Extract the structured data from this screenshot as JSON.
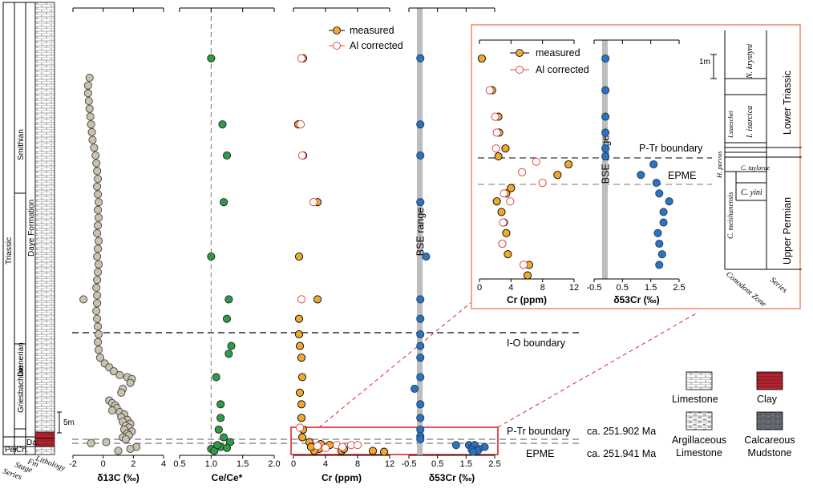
{
  "stratigraphy": {
    "column_labels": [
      "Series",
      "Stage",
      "Fm",
      "Lithology"
    ],
    "series": [
      {
        "label": "Per."
      },
      {
        "label": "Triassic"
      }
    ],
    "stages": [
      {
        "label": "Ch."
      },
      {
        "label": "Griesbachian"
      },
      {
        "label": "Dienerian"
      },
      {
        "label": "Smithian"
      }
    ],
    "formations": [
      {
        "label": "Da."
      },
      {
        "label": "Daye Formation"
      }
    ],
    "scale_label": "5m"
  },
  "boundaries": {
    "io": "I-O boundary",
    "ptr": "P-Tr boundary",
    "epme": "EPME",
    "ptr_age": "ca. 251.902 Ma",
    "epme_age": "ca. 251.941 Ma"
  },
  "legend_lithology": [
    {
      "label": "Limestone",
      "color": "#ffffff"
    },
    {
      "label": "Clay",
      "color": "#b32530"
    },
    {
      "label": "Argillaceous Limestone",
      "color": "#ffffff"
    },
    {
      "label": "Calcareous Mudstone",
      "color": "#555b63"
    }
  ],
  "colors": {
    "d13c": "#c9c3ad",
    "cece": "#2e9c47",
    "cr_measured": "#f0a92f",
    "cr_corrected": "#e04a4a",
    "d53cr": "#2f72b8",
    "bse": "#bdbdbd",
    "highlight": "#e0262e",
    "inset_border": "#f3a68a",
    "clay": "#b32530"
  },
  "chart_data": [
    {
      "type": "scatter",
      "xlabel": "δ13C (‰)",
      "ylim": [
        0,
        100
      ],
      "y_unit": "height (m)",
      "xlim": [
        -2,
        4
      ],
      "xticks": [
        -2,
        0,
        2,
        4
      ],
      "series": [
        {
          "values": [
            [
              -0.9,
              93
            ],
            [
              -1,
              91
            ],
            [
              -1,
              89
            ],
            [
              -0.95,
              87
            ],
            [
              -0.9,
              85
            ],
            [
              -0.85,
              83
            ],
            [
              -0.8,
              81
            ],
            [
              -0.75,
              79
            ],
            [
              -0.7,
              77
            ],
            [
              -0.6,
              75
            ],
            [
              -0.5,
              73
            ],
            [
              -0.45,
              71
            ],
            [
              -0.4,
              69
            ],
            [
              -0.35,
              67
            ],
            [
              -0.4,
              65
            ],
            [
              -0.35,
              63
            ],
            [
              -0.3,
              61
            ],
            [
              -0.35,
              59
            ],
            [
              -0.3,
              57
            ],
            [
              -0.35,
              55
            ],
            [
              -0.4,
              53
            ],
            [
              -0.3,
              51
            ],
            [
              -0.35,
              49
            ],
            [
              -0.4,
              47
            ],
            [
              -0.3,
              45
            ],
            [
              -0.35,
              43
            ],
            [
              -0.4,
              41
            ],
            [
              -0.45,
              39
            ],
            [
              -0.4,
              37
            ],
            [
              -1.3,
              36
            ],
            [
              -0.4,
              35
            ],
            [
              -0.45,
              33
            ],
            [
              -0.4,
              31
            ],
            [
              -0.35,
              29
            ],
            [
              -0.3,
              27
            ],
            [
              -0.35,
              25
            ],
            [
              -0.3,
              23
            ],
            [
              -0.2,
              21
            ],
            [
              0.1,
              19.5
            ],
            [
              0.4,
              18.5
            ],
            [
              0.7,
              17.5
            ],
            [
              1.1,
              16.5
            ],
            [
              1.6,
              16
            ],
            [
              1.9,
              15.5
            ],
            [
              1.8,
              14.5
            ],
            [
              1.3,
              13
            ],
            [
              1.2,
              12
            ],
            [
              0.4,
              10
            ],
            [
              0.6,
              9.3
            ],
            [
              0.8,
              8.7
            ],
            [
              0.9,
              8
            ],
            [
              0.6,
              7.4
            ],
            [
              1.1,
              7
            ],
            [
              1.4,
              6.4
            ],
            [
              1.2,
              5.7
            ],
            [
              1.6,
              5
            ],
            [
              1.3,
              4.5
            ],
            [
              1.8,
              4
            ],
            [
              1.5,
              3.5
            ],
            [
              1.7,
              3
            ],
            [
              1.4,
              2.5
            ],
            [
              1.9,
              2
            ],
            [
              1.6,
              1.5
            ],
            [
              1.7,
              1
            ],
            [
              1.3,
              0.5
            ],
            [
              1.5,
              0
            ],
            [
              0.2,
              -0.3
            ],
            [
              2.2,
              -0.8
            ],
            [
              1.8,
              -1
            ],
            [
              1,
              -1.2
            ],
            [
              -0.8,
              -0.4
            ]
          ]
        }
      ]
    },
    {
      "type": "scatter",
      "xlabel": "Ce/Ce*",
      "ylim": [
        0,
        100
      ],
      "y_unit": "height (m)",
      "xlim": [
        0.5,
        2.0
      ],
      "xticks": [
        0.5,
        1.0,
        1.5,
        2.0
      ],
      "series": [
        {
          "values": [
            [
              1.0,
              98
            ],
            [
              1.18,
              81
            ],
            [
              1.25,
              73
            ],
            [
              1.2,
              61
            ],
            [
              1.0,
              47
            ],
            [
              1.28,
              36
            ],
            [
              1.25,
              31
            ],
            [
              1.32,
              24
            ],
            [
              1.28,
              22
            ],
            [
              1.08,
              16
            ],
            [
              1.15,
              9
            ],
            [
              1.15,
              5.5
            ],
            [
              1.12,
              2.5
            ],
            [
              1.2,
              0.5
            ],
            [
              1.3,
              -0.3
            ],
            [
              1.15,
              -0.8
            ],
            [
              1.0,
              -1
            ],
            [
              1.05,
              -1.2
            ],
            [
              1.1,
              -0.6
            ],
            [
              1.25,
              -0.9
            ]
          ]
        }
      ]
    },
    {
      "type": "scatter",
      "xlabel": "Cr (ppm)",
      "ylim": [
        0,
        100
      ],
      "y_unit": "height (m)",
      "xlim": [
        0,
        12
      ],
      "xticks": [
        0,
        4,
        8,
        12
      ],
      "series": [
        {
          "name": "measured",
          "values": [
            [
              1.2,
              98
            ],
            [
              0.6,
              81
            ],
            [
              1.2,
              73
            ],
            [
              3.0,
              61
            ],
            [
              0.7,
              47
            ],
            [
              3.0,
              36
            ],
            [
              0.7,
              31
            ],
            [
              0.7,
              27
            ],
            [
              0.8,
              24
            ],
            [
              1.0,
              21
            ],
            [
              1.1,
              16
            ],
            [
              0.8,
              12
            ],
            [
              1.0,
              9
            ],
            [
              1.0,
              5.5
            ],
            [
              1.2,
              2.5
            ],
            [
              1.1,
              0.5
            ],
            [
              2,
              -0.3
            ],
            [
              3.4,
              -0.5
            ],
            [
              4.5,
              -0.6
            ],
            [
              6.0,
              -1.2
            ],
            [
              9.9,
              -1.2
            ],
            [
              11.3,
              -1.3
            ],
            [
              6.3,
              -1.0
            ],
            [
              3.2,
              -1.0
            ],
            [
              2.6,
              -1.2
            ],
            [
              2.2,
              -0.8
            ]
          ]
        },
        {
          "name": "Al corrected",
          "values": [
            [
              1.0,
              98
            ],
            [
              0.9,
              81
            ],
            [
              1.1,
              73
            ],
            [
              2.5,
              61
            ],
            [
              1.0,
              36
            ],
            [
              0.8,
              3
            ],
            [
              5.4,
              -0.6
            ],
            [
              7.2,
              -0.6
            ],
            [
              8.0,
              -0.6
            ],
            [
              6.1,
              -0.8
            ],
            [
              4.0,
              -0.9
            ],
            [
              3.0,
              -0.7
            ]
          ]
        }
      ]
    },
    {
      "type": "scatter",
      "xlabel": "δ53Cr (‰)",
      "ylim": [
        0,
        100
      ],
      "y_unit": "height (m)",
      "xlim": [
        -0.5,
        2.5
      ],
      "xticks": [
        -0.5,
        0.5,
        1.5,
        2.5
      ],
      "bse_range": [
        -0.22,
        -0.02
      ],
      "bse_label": "BSE range",
      "series": [
        {
          "values": [
            [
              -0.1,
              98
            ],
            [
              -0.1,
              81
            ],
            [
              -0.1,
              73
            ],
            [
              -0.1,
              61
            ],
            [
              0.1,
              47
            ],
            [
              -0.1,
              36
            ],
            [
              -0.1,
              31
            ],
            [
              -0.1,
              27
            ],
            [
              -0.1,
              24
            ],
            [
              -0.1,
              21
            ],
            [
              -0.1,
              16
            ],
            [
              -0.3,
              13
            ],
            [
              -0.1,
              9
            ],
            [
              -0.1,
              5.5
            ],
            [
              -0.1,
              2.5
            ],
            [
              -0.1,
              0.8
            ],
            [
              -0.1,
              0
            ],
            [
              1.15,
              -0.6
            ],
            [
              1.6,
              -0.6
            ],
            [
              1.7,
              -0.9
            ],
            [
              1.8,
              -0.6
            ],
            [
              2.15,
              -0.8
            ],
            [
              1.95,
              -1.0
            ],
            [
              1.9,
              -1.2
            ],
            [
              1.7,
              -1.1
            ],
            [
              1.75,
              -1.3
            ]
          ]
        }
      ]
    },
    {
      "type": "scatter",
      "title": "",
      "xlabel": "Cr (ppm)",
      "y_unit": "position (relative)",
      "xlim": [
        0,
        12
      ],
      "xticks": [
        0,
        4,
        8,
        12
      ],
      "series": [
        {
          "name": "measured",
          "values": [
            [
              0.3,
              0
            ],
            [
              1.6,
              12
            ],
            [
              2.4,
              22
            ],
            [
              2.5,
              28
            ],
            [
              3.3,
              34
            ],
            [
              2.4,
              37
            ],
            [
              11.3,
              40
            ],
            [
              9.9,
              44
            ],
            [
              4.0,
              49
            ],
            [
              3.4,
              51
            ],
            [
              2.2,
              54
            ],
            [
              2.8,
              58
            ],
            [
              3.1,
              62
            ],
            [
              3.4,
              66
            ],
            [
              2.9,
              70
            ],
            [
              3.6,
              74
            ],
            [
              6.3,
              78
            ],
            [
              6.1,
              82
            ]
          ]
        },
        {
          "name": "Al corrected",
          "values": [
            [
              1.3,
              12
            ],
            [
              2.0,
              22
            ],
            [
              2.2,
              28
            ],
            [
              2.1,
              34
            ],
            [
              7.2,
              39
            ],
            [
              5.4,
              43
            ],
            [
              8.0,
              47
            ],
            [
              3.1,
              51
            ],
            [
              3.9,
              54
            ],
            [
              3.0,
              62
            ],
            [
              2.9,
              70
            ],
            [
              5.6,
              78
            ]
          ]
        }
      ]
    },
    {
      "type": "scatter",
      "xlabel": "δ53Cr (‰)",
      "y_unit": "position (relative)",
      "xlim": [
        -0.5,
        2.5
      ],
      "xticks": [
        -0.5,
        0.5,
        1.5,
        2.5
      ],
      "bse_range": [
        -0.22,
        -0.02
      ],
      "bse_label": "BSE range",
      "series": [
        {
          "values": [
            [
              -0.1,
              0
            ],
            [
              -0.1,
              12
            ],
            [
              -0.1,
              22
            ],
            [
              -0.1,
              28
            ],
            [
              -0.1,
              34
            ],
            [
              -0.1,
              37
            ],
            [
              1.6,
              40
            ],
            [
              1.15,
              44
            ],
            [
              1.7,
              47
            ],
            [
              1.8,
              51
            ],
            [
              2.15,
              54
            ],
            [
              1.95,
              58
            ],
            [
              1.95,
              62
            ],
            [
              1.75,
              66
            ],
            [
              1.8,
              70
            ],
            [
              1.9,
              74
            ],
            [
              1.8,
              78
            ]
          ]
        }
      ]
    }
  ],
  "inset": {
    "legend_measured": "measured",
    "legend_corrected": "Al corrected",
    "bse_label": "BSE range",
    "ptr": "P-Tr boundary",
    "epme": "EPME",
    "scale": "1m",
    "zones": [
      {
        "label": "N. krystyni"
      },
      {
        "label": "I. isarcica"
      },
      {
        "label": "I.staeschei"
      },
      {
        "label": "H. parvus"
      },
      {
        "label": "C. taylorae"
      },
      {
        "label": "C. meishanensis"
      },
      {
        "label": "C. yini"
      }
    ],
    "zone_title": "Conodont Zone",
    "series_title": "Series",
    "series": [
      {
        "label": "Lower Triassic"
      },
      {
        "label": "Upper Permian"
      }
    ]
  },
  "main_legend": {
    "measured": "measured",
    "corrected": "Al corrected"
  }
}
